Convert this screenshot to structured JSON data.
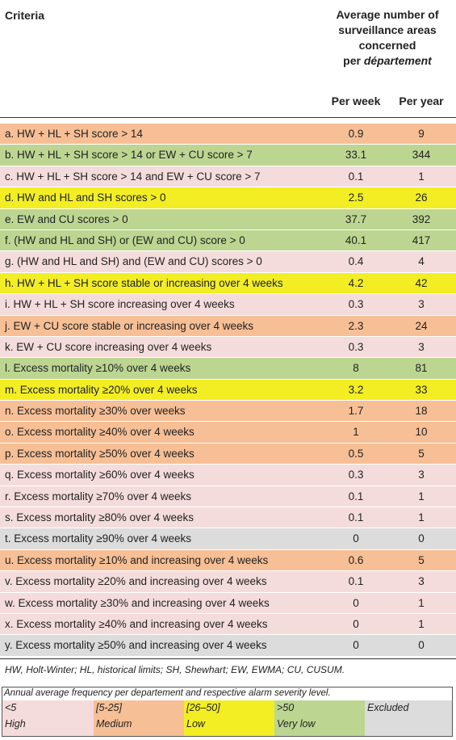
{
  "colors": {
    "pink": "#f5dcdc",
    "orange": "#f7bf95",
    "yellow": "#f3ee24",
    "green": "#bcd692",
    "grey": "#dcdcdc"
  },
  "header": {
    "criteria": "Criteria",
    "avg_line1": "Average number of",
    "avg_line2": "surveillance areas",
    "avg_line3": "concerned",
    "avg_line4_prefix": "per ",
    "avg_line4_italic": "département",
    "per_week": "Per week",
    "per_year": "Per year"
  },
  "rows": [
    {
      "criterion": "a. HW + HL + SH score > 14",
      "per_week": "0.9",
      "per_year": "9",
      "level": "orange"
    },
    {
      "criterion": "b. HW + HL + SH score > 14 or EW + CU score > 7",
      "per_week": "33.1",
      "per_year": "344",
      "level": "green"
    },
    {
      "criterion": "c. HW + HL + SH score > 14 and EW + CU score > 7",
      "per_week": "0.1",
      "per_year": "1",
      "level": "pink"
    },
    {
      "criterion": "d. HW and HL and SH scores > 0",
      "per_week": "2.5",
      "per_year": "26",
      "level": "yellow"
    },
    {
      "criterion": "e. EW and CU scores > 0",
      "per_week": "37.7",
      "per_year": "392",
      "level": "green"
    },
    {
      "criterion": "f. (HW and HL and SH) or (EW and CU) score > 0",
      "per_week": "40.1",
      "per_year": "417",
      "level": "green"
    },
    {
      "criterion": "g. (HW and HL and SH) and (EW and CU) scores > 0",
      "per_week": "0.4",
      "per_year": "4",
      "level": "pink"
    },
    {
      "criterion": "h. HW + HL + SH score stable or increasing over 4 weeks",
      "per_week": "4.2",
      "per_year": "42",
      "level": "yellow"
    },
    {
      "criterion": "i. HW + HL + SH score increasing over 4 weeks",
      "per_week": "0.3",
      "per_year": "3",
      "level": "pink"
    },
    {
      "criterion": "j. EW + CU score stable or increasing over 4 weeks",
      "per_week": "2.3",
      "per_year": "24",
      "level": "orange"
    },
    {
      "criterion": "k. EW + CU score increasing over 4 weeks",
      "per_week": "0.3",
      "per_year": "3",
      "level": "pink"
    },
    {
      "criterion": "l. Excess mortality ≥10% over 4 weeks",
      "per_week": "8",
      "per_year": "81",
      "level": "green"
    },
    {
      "criterion": "m. Excess mortality ≥20% over 4 weeks",
      "per_week": "3.2",
      "per_year": "33",
      "level": "yellow"
    },
    {
      "criterion": "n. Excess mortality ≥30% over weeks",
      "per_week": "1.7",
      "per_year": "18",
      "level": "orange"
    },
    {
      "criterion": "o. Excess mortality ≥40% over 4 weeks",
      "per_week": "1",
      "per_year": "10",
      "level": "orange"
    },
    {
      "criterion": "p. Excess mortality ≥50% over 4 weeks",
      "per_week": "0.5",
      "per_year": "5",
      "level": "orange"
    },
    {
      "criterion": "q. Excess mortality ≥60% over 4 weeks",
      "per_week": "0.3",
      "per_year": "3",
      "level": "pink"
    },
    {
      "criterion": "r. Excess mortality ≥70% over 4 weeks",
      "per_week": "0.1",
      "per_year": "1",
      "level": "pink"
    },
    {
      "criterion": "s. Excess mortality ≥80% over 4 weeks",
      "per_week": "0.1",
      "per_year": "1",
      "level": "pink"
    },
    {
      "criterion": "t. Excess mortality ≥90% over 4 weeks",
      "per_week": "0",
      "per_year": "0",
      "level": "grey"
    },
    {
      "criterion": "u. Excess mortality ≥10% and increasing over 4 weeks",
      "per_week": "0.6",
      "per_year": "5",
      "level": "orange"
    },
    {
      "criterion": "v. Excess mortality ≥20% and increasing over 4 weeks",
      "per_week": "0.1",
      "per_year": "3",
      "level": "pink"
    },
    {
      "criterion": "w. Excess mortality ≥30% and increasing over 4 weeks",
      "per_week": "0",
      "per_year": "1",
      "level": "pink"
    },
    {
      "criterion": "x. Excess mortality ≥40% and increasing over 4 weeks",
      "per_week": "0",
      "per_year": "1",
      "level": "pink"
    },
    {
      "criterion": "y. Excess mortality ≥50% and increasing over 4 weeks",
      "per_week": "0",
      "per_year": "0",
      "level": "grey"
    }
  ],
  "footnote": "HW, Holt-Winter; HL, historical limits; SH, Shewhart; EW, EWMA; CU, CUSUM.",
  "legend": {
    "title": "Annual average frequency per departement and respective alarm severity level.",
    "items": [
      {
        "range": "<5",
        "level": "High",
        "color_key": "pink"
      },
      {
        "range": "[5-25]",
        "level": "Medium",
        "color_key": "orange"
      },
      {
        "range": "[26–50]",
        "level": "Low",
        "color_key": "yellow"
      },
      {
        "range": ">50",
        "level": "Very low",
        "color_key": "green"
      },
      {
        "range": "",
        "level": "Excluded",
        "color_key": "grey"
      }
    ]
  }
}
